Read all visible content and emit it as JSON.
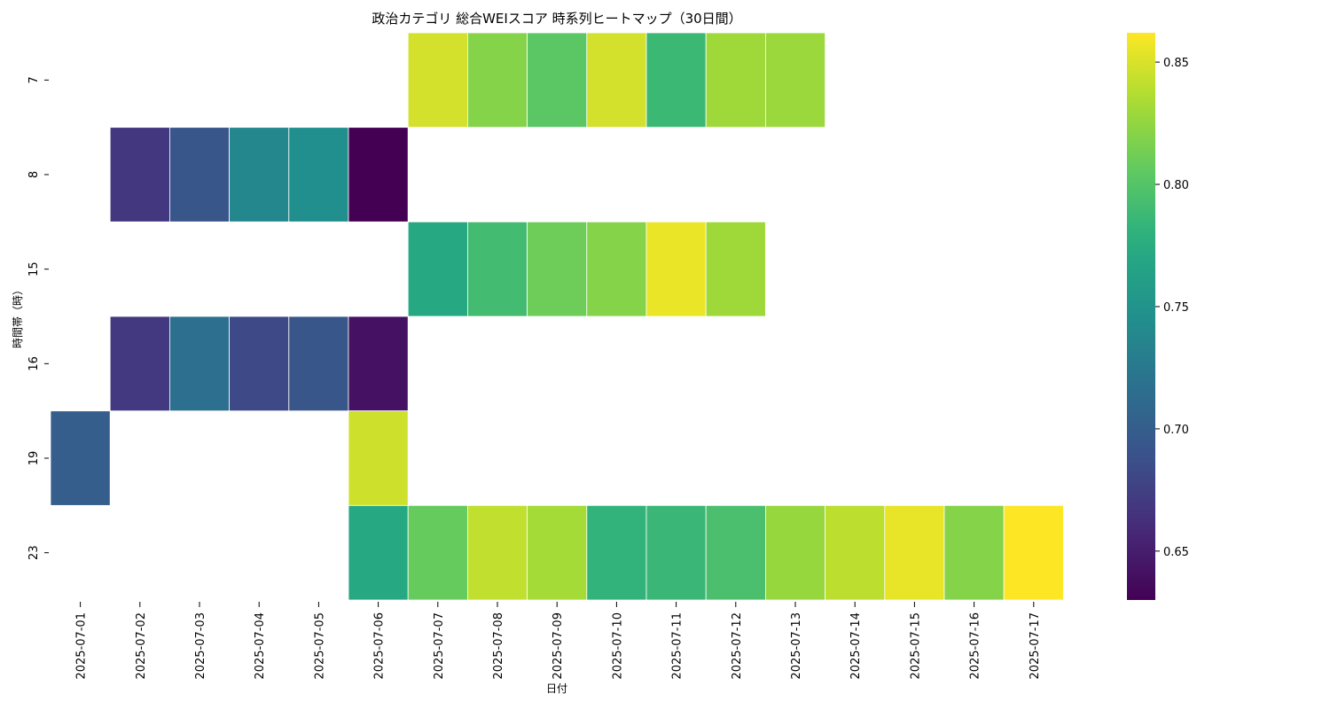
{
  "chart_data": {
    "type": "heatmap",
    "title": "政治カテゴリ 総合WEIスコア 時系列ヒートマップ（30日間）",
    "xlabel": "日付",
    "ylabel": "時間帯（時）",
    "x": [
      "2025-07-01",
      "2025-07-02",
      "2025-07-03",
      "2025-07-04",
      "2025-07-05",
      "2025-07-06",
      "2025-07-07",
      "2025-07-08",
      "2025-07-09",
      "2025-07-10",
      "2025-07-11",
      "2025-07-12",
      "2025-07-13",
      "2025-07-14",
      "2025-07-15",
      "2025-07-16",
      "2025-07-17"
    ],
    "y": [
      "7",
      "8",
      "15",
      "16",
      "19",
      "23"
    ],
    "values": [
      [
        null,
        null,
        null,
        null,
        null,
        null,
        0.848,
        0.82,
        0.803,
        0.848,
        0.787,
        0.83,
        0.828,
        null,
        null,
        null,
        null
      ],
      [
        null,
        0.669,
        0.693,
        0.738,
        0.745,
        0.63,
        null,
        null,
        null,
        null,
        null,
        null,
        null,
        null,
        null,
        null,
        null
      ],
      [
        null,
        null,
        null,
        null,
        null,
        null,
        0.771,
        0.791,
        0.811,
        0.82,
        0.856,
        0.83,
        null,
        null,
        null,
        null,
        null
      ],
      [
        null,
        0.67,
        0.716,
        0.682,
        0.693,
        0.641,
        null,
        null,
        null,
        null,
        null,
        null,
        null,
        null,
        null,
        null,
        null
      ],
      [
        0.7,
        null,
        null,
        null,
        null,
        0.846,
        null,
        null,
        null,
        null,
        null,
        null,
        null,
        null,
        null,
        null,
        null
      ],
      [
        null,
        null,
        null,
        null,
        null,
        0.771,
        0.808,
        0.842,
        0.832,
        0.782,
        0.786,
        0.795,
        0.827,
        0.84,
        0.855,
        0.82,
        0.862
      ]
    ],
    "colormap": "viridis",
    "vmin": 0.63,
    "vmax": 0.862,
    "colorbar": {
      "ticks": [
        0.65,
        0.7,
        0.75,
        0.8,
        0.85
      ],
      "tick_labels": [
        "0.65",
        "0.70",
        "0.75",
        "0.80",
        "0.85"
      ]
    },
    "grid": false,
    "cell_border_color": "#ffffff"
  }
}
